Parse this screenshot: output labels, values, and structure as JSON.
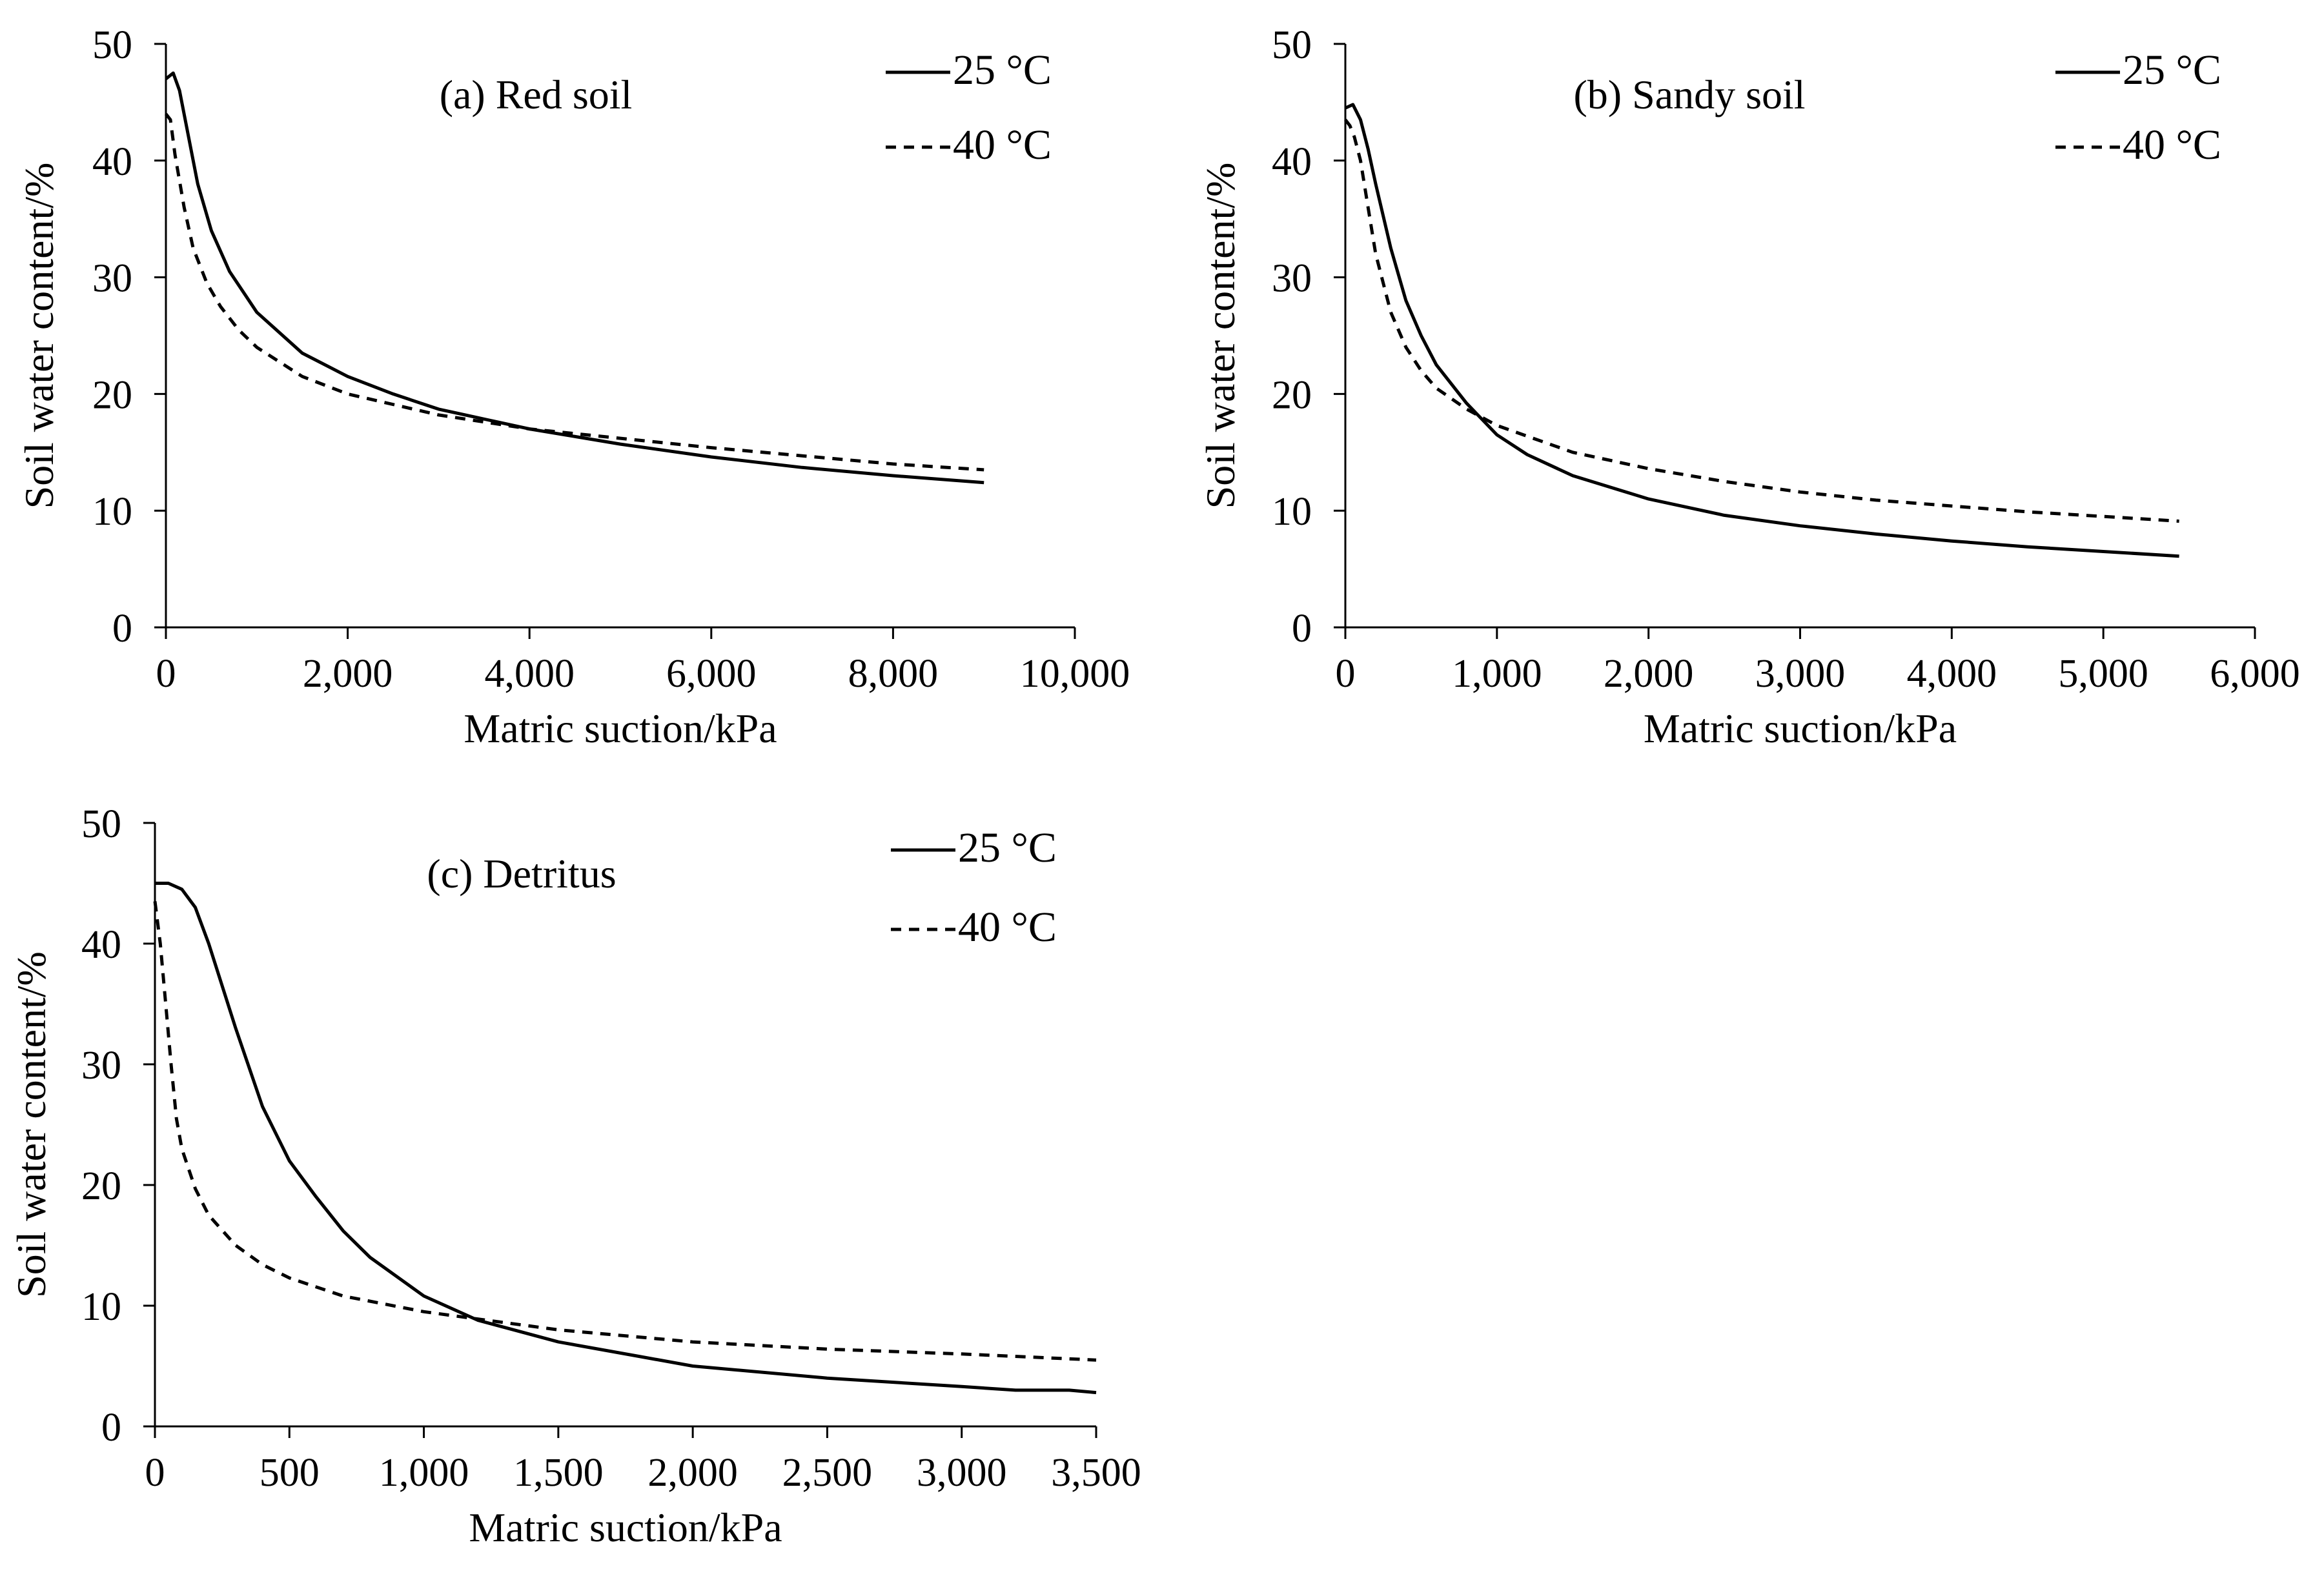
{
  "chart_data": [
    {
      "id": "a",
      "type": "line",
      "title": "(a) Red soil",
      "xlabel": "Matric suction/kPa",
      "ylabel": "Soil water content/%",
      "xlim": [
        0,
        10000
      ],
      "ylim": [
        0,
        50
      ],
      "xticks": [
        0,
        2000,
        4000,
        6000,
        8000,
        10000
      ],
      "xtick_labels": [
        "0",
        "2,000",
        "4,000",
        "6,000",
        "8,000",
        "10,000"
      ],
      "yticks": [
        0,
        10,
        20,
        30,
        40,
        50
      ],
      "ytick_labels": [
        "0",
        "10",
        "20",
        "30",
        "40",
        "50"
      ],
      "legend": [
        "25 °C",
        "40 °C"
      ],
      "series": [
        {
          "name": "25 °C",
          "style": "solid",
          "x": [
            0,
            80,
            150,
            250,
            350,
            500,
            700,
            1000,
            1500,
            2000,
            2500,
            3000,
            4000,
            5000,
            6000,
            7000,
            8000,
            9000
          ],
          "y": [
            47,
            47.5,
            46,
            42,
            38,
            34,
            30.5,
            27,
            23.5,
            21.5,
            20,
            18.7,
            17,
            15.7,
            14.6,
            13.7,
            13,
            12.4
          ]
        },
        {
          "name": "40 °C",
          "style": "dashed",
          "x": [
            0,
            50,
            100,
            200,
            300,
            450,
            600,
            800,
            1000,
            1500,
            2000,
            3000,
            4000,
            5000,
            6000,
            7000,
            8000,
            9000
          ],
          "y": [
            44,
            43.5,
            40.5,
            36,
            32.5,
            29.5,
            27.5,
            25.5,
            24,
            21.5,
            20,
            18.2,
            17,
            16.2,
            15.4,
            14.7,
            14,
            13.5
          ]
        }
      ]
    },
    {
      "id": "b",
      "type": "line",
      "title": "(b) Sandy soil",
      "xlabel": "Matric suction/kPa",
      "ylabel": "Soil water content/%",
      "xlim": [
        0,
        6000
      ],
      "ylim": [
        0,
        50
      ],
      "xticks": [
        0,
        1000,
        2000,
        3000,
        4000,
        5000,
        6000
      ],
      "xtick_labels": [
        "0",
        "1,000",
        "2,000",
        "3,000",
        "4,000",
        "5,000",
        "6,000"
      ],
      "yticks": [
        0,
        10,
        20,
        30,
        40,
        50
      ],
      "ytick_labels": [
        "0",
        "10",
        "20",
        "30",
        "40",
        "50"
      ],
      "legend": [
        "25 °C",
        "40 °C"
      ],
      "series": [
        {
          "name": "25 °C",
          "style": "solid",
          "x": [
            0,
            50,
            100,
            150,
            200,
            300,
            400,
            500,
            600,
            800,
            1000,
            1200,
            1500,
            2000,
            2500,
            3000,
            3500,
            4000,
            4500,
            5000,
            5500
          ],
          "y": [
            44.5,
            44.8,
            43.5,
            41,
            38,
            32.5,
            28,
            25,
            22.5,
            19.2,
            16.5,
            14.8,
            13,
            11,
            9.6,
            8.7,
            8,
            7.4,
            6.9,
            6.5,
            6.1
          ]
        },
        {
          "name": "40 °C",
          "style": "dashed",
          "x": [
            0,
            30,
            60,
            100,
            150,
            200,
            300,
            400,
            500,
            600,
            800,
            1000,
            1500,
            2000,
            2500,
            3000,
            3500,
            4000,
            4500,
            5000,
            5500
          ],
          "y": [
            43.5,
            43,
            42,
            40,
            36,
            32,
            27,
            24,
            22,
            20.5,
            18.7,
            17.3,
            15,
            13.6,
            12.5,
            11.6,
            10.9,
            10.4,
            9.9,
            9.5,
            9.1
          ]
        }
      ]
    },
    {
      "id": "c",
      "type": "line",
      "title": "(c) Detritus",
      "xlabel": "Matric suction/kPa",
      "ylabel": "Soil water content/%",
      "xlim": [
        0,
        3500
      ],
      "ylim": [
        0,
        50
      ],
      "xticks": [
        0,
        500,
        1000,
        1500,
        2000,
        2500,
        3000,
        3500
      ],
      "xtick_labels": [
        "0",
        "500",
        "1,000",
        "1,500",
        "2,000",
        "2,500",
        "3,000",
        "3,500"
      ],
      "yticks": [
        0,
        10,
        20,
        30,
        40,
        50
      ],
      "ytick_labels": [
        "0",
        "10",
        "20",
        "30",
        "40",
        "50"
      ],
      "legend": [
        "25 °C",
        "40 °C"
      ],
      "series": [
        {
          "name": "25 °C",
          "style": "solid",
          "x": [
            0,
            50,
            100,
            150,
            200,
            300,
            400,
            500,
            600,
            700,
            800,
            1000,
            1200,
            1500,
            1800,
            2000,
            2500,
            3000,
            3200,
            3400,
            3500
          ],
          "y": [
            45,
            45,
            44.5,
            43,
            40,
            33,
            26.5,
            22,
            19,
            16.2,
            14,
            10.8,
            8.8,
            7,
            5.8,
            5,
            4,
            3.3,
            3,
            3,
            2.8
          ]
        },
        {
          "name": "40 °C",
          "style": "dashed",
          "x": [
            0,
            20,
            40,
            60,
            80,
            100,
            150,
            200,
            300,
            400,
            500,
            700,
            1000,
            1200,
            1500,
            2000,
            2500,
            3000,
            3500
          ],
          "y": [
            43.5,
            40,
            35,
            30,
            25.5,
            23,
            19.7,
            17.5,
            15,
            13.4,
            12.3,
            10.8,
            9.5,
            8.9,
            8,
            7,
            6.4,
            6,
            5.5
          ]
        }
      ]
    }
  ]
}
